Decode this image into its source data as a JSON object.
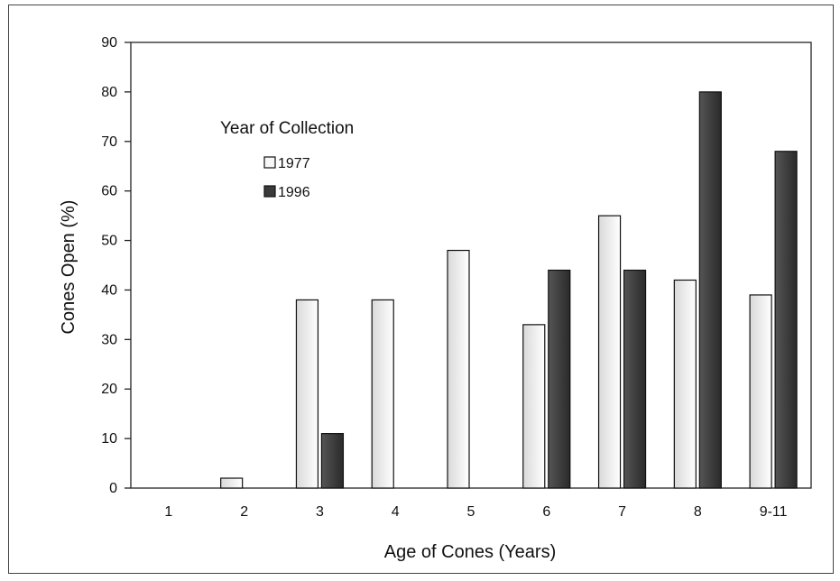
{
  "chart_data": {
    "type": "bar",
    "title": "",
    "xlabel": "Age of Cones (Years)",
    "ylabel": "Cones Open (%)",
    "ylim": [
      0,
      90
    ],
    "yticks": [
      0,
      10,
      20,
      30,
      40,
      50,
      60,
      70,
      80,
      90
    ],
    "categories": [
      "1",
      "2",
      "3",
      "4",
      "5",
      "6",
      "7",
      "8",
      "9-11"
    ],
    "series": [
      {
        "name": "1977",
        "values": [
          0,
          2,
          38,
          38,
          48,
          33,
          55,
          42,
          39
        ],
        "color": "#f4f4f4"
      },
      {
        "name": "1996",
        "values": [
          0,
          0,
          11,
          0,
          0,
          44,
          44,
          80,
          68
        ],
        "color": "#3a3a3a"
      }
    ],
    "legend": {
      "title": "Year of Collection",
      "position": "top-left"
    },
    "grid": false
  }
}
